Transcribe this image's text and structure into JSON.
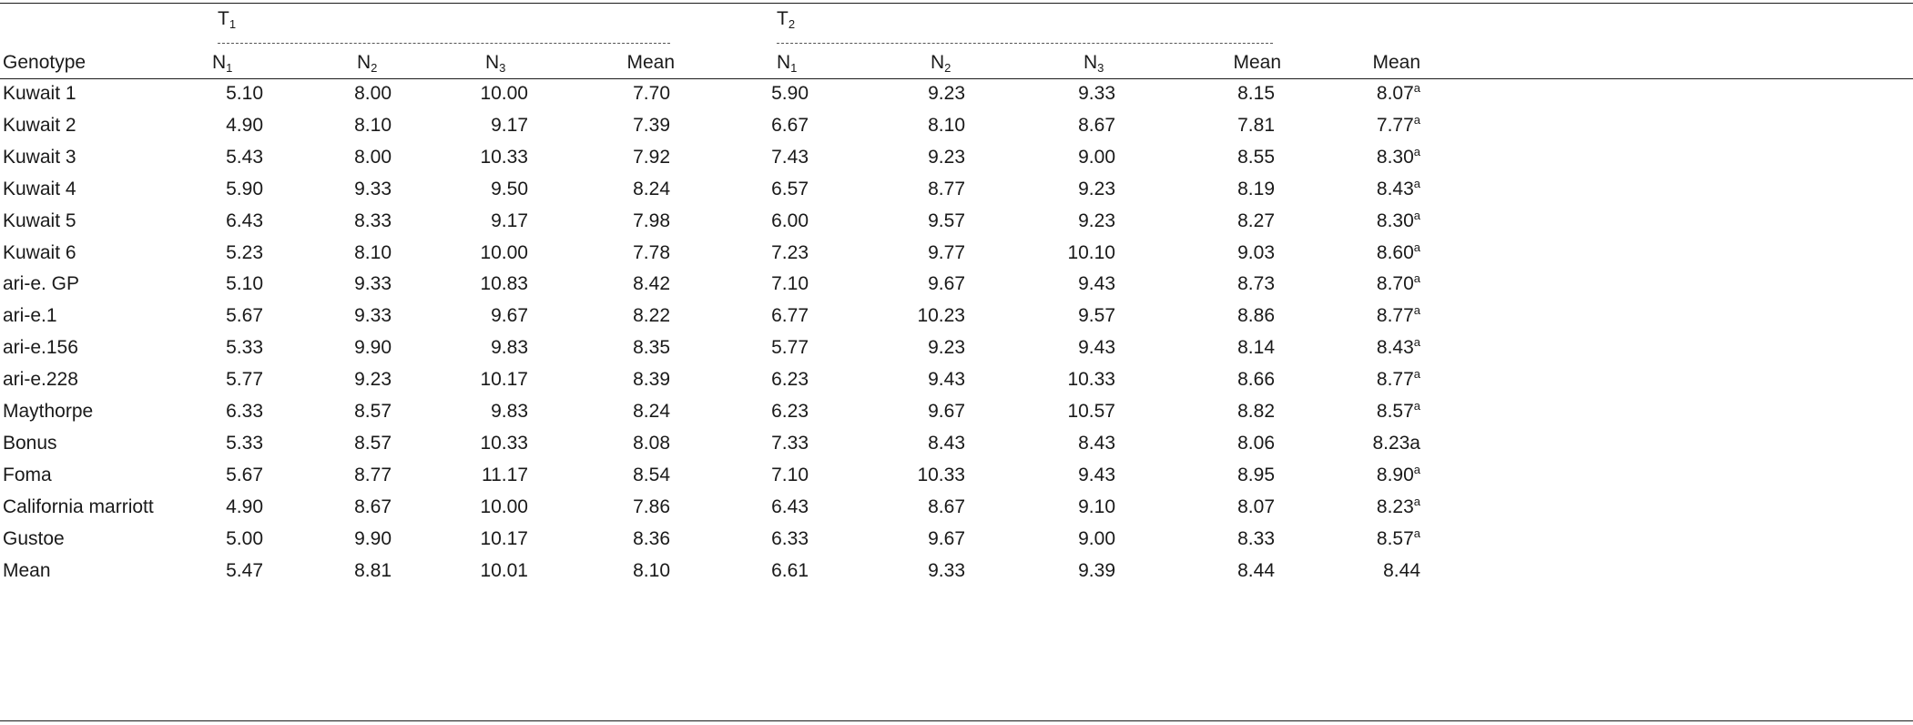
{
  "table": {
    "group_headers": [
      {
        "letter": "T",
        "sub": "1"
      },
      {
        "letter": "T",
        "sub": "2"
      }
    ],
    "genotype_header": "Genotype",
    "column_headers": [
      {
        "letter": "N",
        "sub": "1"
      },
      {
        "letter": "N",
        "sub": "2"
      },
      {
        "letter": "N",
        "sub": "3"
      },
      {
        "text": "Mean"
      },
      {
        "letter": "N",
        "sub": "1"
      },
      {
        "letter": "N",
        "sub": "2"
      },
      {
        "letter": "N",
        "sub": "3"
      },
      {
        "text": "Mean"
      },
      {
        "text": "Mean"
      }
    ],
    "rows": [
      {
        "genotype": "Kuwait 1",
        "values": [
          "5.10",
          "8.00",
          "10.00",
          "7.70",
          "5.90",
          "9.23",
          "9.33",
          "8.15"
        ],
        "mean": "8.07",
        "mean_sup": "a"
      },
      {
        "genotype": "Kuwait 2",
        "values": [
          "4.90",
          "8.10",
          "9.17",
          "7.39",
          "6.67",
          "8.10",
          "8.67",
          "7.81"
        ],
        "mean": "7.77",
        "mean_sup": "a"
      },
      {
        "genotype": "Kuwait 3",
        "values": [
          "5.43",
          "8.00",
          "10.33",
          "7.92",
          "7.43",
          "9.23",
          "9.00",
          "8.55"
        ],
        "mean": "8.30",
        "mean_sup": "a"
      },
      {
        "genotype": "Kuwait 4",
        "values": [
          "5.90",
          "9.33",
          "9.50",
          "8.24",
          "6.57",
          "8.77",
          "9.23",
          "8.19"
        ],
        "mean": "8.43",
        "mean_sup": "a"
      },
      {
        "genotype": "Kuwait 5",
        "values": [
          "6.43",
          "8.33",
          "9.17",
          "7.98",
          "6.00",
          "9.57",
          "9.23",
          "8.27"
        ],
        "mean": "8.30",
        "mean_sup": "a"
      },
      {
        "genotype": "Kuwait 6",
        "values": [
          "5.23",
          "8.10",
          "10.00",
          "7.78",
          "7.23",
          "9.77",
          "10.10",
          "9.03"
        ],
        "mean": "8.60",
        "mean_sup": "a"
      },
      {
        "genotype": "ari-e. GP",
        "values": [
          "5.10",
          "9.33",
          "10.83",
          "8.42",
          "7.10",
          "9.67",
          "9.43",
          "8.73"
        ],
        "mean": "8.70",
        "mean_sup": "a"
      },
      {
        "genotype": "ari-e.1",
        "values": [
          "5.67",
          "9.33",
          "9.67",
          "8.22",
          "6.77",
          "10.23",
          "9.57",
          "8.86"
        ],
        "mean": "8.77",
        "mean_sup": "a"
      },
      {
        "genotype": "ari-e.156",
        "values": [
          "5.33",
          "9.90",
          "9.83",
          "8.35",
          "5.77",
          "9.23",
          "9.43",
          "8.14"
        ],
        "mean": "8.43",
        "mean_sup": "a"
      },
      {
        "genotype": "ari-e.228",
        "values": [
          "5.77",
          "9.23",
          "10.17",
          "8.39",
          "6.23",
          "9.43",
          "10.33",
          "8.66"
        ],
        "mean": "8.77",
        "mean_sup": "a"
      },
      {
        "genotype": "Maythorpe",
        "values": [
          "6.33",
          "8.57",
          "9.83",
          "8.24",
          "6.23",
          "9.67",
          "10.57",
          "8.82"
        ],
        "mean": "8.57",
        "mean_sup": "a"
      },
      {
        "genotype": "Bonus",
        "values": [
          "5.33",
          "8.57",
          "10.33",
          "8.08",
          "7.33",
          "8.43",
          "8.43",
          "8.06"
        ],
        "mean": "8.23a",
        "mean_sup": ""
      },
      {
        "genotype": "Foma",
        "values": [
          "5.67",
          "8.77",
          "11.17",
          "8.54",
          "7.10",
          "10.33",
          "9.43",
          "8.95"
        ],
        "mean": "8.90",
        "mean_sup": "a"
      },
      {
        "genotype": "California marriott",
        "values": [
          "4.90",
          "8.67",
          "10.00",
          "7.86",
          "6.43",
          "8.67",
          "9.10",
          "8.07"
        ],
        "mean": "8.23",
        "mean_sup": "a"
      },
      {
        "genotype": "Gustoe",
        "values": [
          "5.00",
          "9.90",
          "10.17",
          "8.36",
          "6.33",
          "9.67",
          "9.00",
          "8.33"
        ],
        "mean": "8.57",
        "mean_sup": "a"
      },
      {
        "genotype": "Mean",
        "values": [
          "5.47",
          "8.81",
          "10.01",
          "8.10",
          "6.61",
          "9.33",
          "9.39",
          "8.44"
        ],
        "mean": "8.44",
        "mean_sup": ""
      }
    ]
  }
}
